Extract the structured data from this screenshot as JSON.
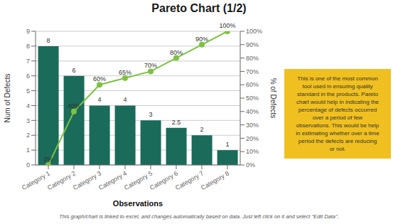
{
  "chart_data": {
    "type": "bar",
    "title": "Pareto Chart (1/2)",
    "xlabel": "Observations",
    "ylabel": "Num of Defects",
    "y2label": "% of Defects",
    "categories": [
      "Category 1",
      "Category 2",
      "Category 3",
      "Category 4",
      "Category 5",
      "Category 6",
      "Category 7",
      "Category 8"
    ],
    "series": [
      {
        "type": "bar",
        "color": "#1a6b5a",
        "values": [
          8,
          6,
          4,
          4,
          3,
          2.5,
          2,
          1
        ],
        "data_labels": true
      },
      {
        "type": "line",
        "axis": "y2",
        "color": "#7dc242",
        "marker": "circle",
        "values": [
          0,
          40,
          60,
          65,
          70,
          80,
          90,
          100
        ],
        "value_labels": [
          "0%",
          "40%",
          "60%",
          "65%",
          "70%",
          "80%",
          "90%",
          "100%"
        ],
        "data_labels": true
      }
    ],
    "ylim": [
      0,
      9
    ],
    "yticks": [
      0,
      1,
      2,
      3,
      4,
      5,
      6,
      7,
      8,
      9
    ],
    "y2lim": [
      0,
      100
    ],
    "y2ticks": [
      {
        "value": 0,
        "label": "0%"
      },
      {
        "value": 10,
        "label": "10%"
      },
      {
        "value": 20,
        "label": "20%"
      },
      {
        "value": 30,
        "label": "30%"
      },
      {
        "value": 40,
        "label": "40%"
      },
      {
        "value": 50,
        "label": "50%"
      },
      {
        "value": 60,
        "label": "60%"
      },
      {
        "value": 70,
        "label": "70%"
      },
      {
        "value": 80,
        "label": "80%"
      },
      {
        "value": 90,
        "label": "90%"
      },
      {
        "value": 100,
        "label": "100%"
      }
    ],
    "grid": true,
    "annotations": [
      "This is one of the most common\ntool used in ensuring quality\nstandard in the products. Pareto\nchart would help in indicating the\npercentage of defects occurred\nover a period of few\nobservations. This would be help\nin estimating whether over a time\nperiod the defects are reducing\nor not.",
      "This graph/chart is linked to excel, and changes automatically based on data. Just left click on it and select \"Edit Data\"."
    ]
  }
}
